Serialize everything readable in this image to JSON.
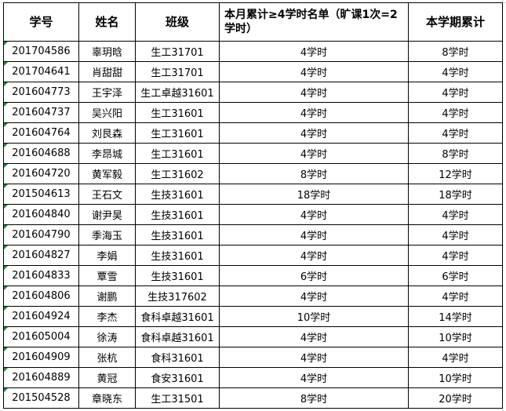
{
  "headers": [
    "学号",
    "姓名",
    "班级",
    "本月累计≥4学时名单（旷课1次=2学时）",
    "本学期累计"
  ],
  "rows": [
    [
      "201704586",
      "辜玥晗",
      "生工31701",
      "4学时",
      "8学时"
    ],
    [
      "201704641",
      "肖甜甜",
      "生工31701",
      "4学时",
      "4学时"
    ],
    [
      "201604773",
      "王宇泽",
      "生工卓越31601",
      "4学时",
      "4学时"
    ],
    [
      "201604737",
      "吴兴阳",
      "生工31601",
      "4学时",
      "4学时"
    ],
    [
      "201604764",
      "刘艮森",
      "生工31601",
      "4学时",
      "4学时"
    ],
    [
      "201604688",
      "李昂城",
      "生工31601",
      "4学时",
      "8学时"
    ],
    [
      "201604720",
      "黄军毅",
      "生工31602",
      "8学时",
      "12学时"
    ],
    [
      "201504613",
      "王石文",
      "生技31601",
      "18学时",
      "18学时"
    ],
    [
      "201604840",
      "谢尹昊",
      "生技31601",
      "4学时",
      "4学时"
    ],
    [
      "201604790",
      "季海玉",
      "生技31601",
      "4学时",
      "4学时"
    ],
    [
      "201604827",
      "李娟",
      "生技31601",
      "4学时",
      "4学时"
    ],
    [
      "201604833",
      "覃雪",
      "生技31601",
      "6学时",
      "6学时"
    ],
    [
      "201604806",
      "谢鹏",
      "生技317602",
      "4学时",
      "4学时"
    ],
    [
      "201604924",
      "李杰",
      "食科卓越31601",
      "10学时",
      "14学时"
    ],
    [
      "201605004",
      "徐涛",
      "食科卓越31601",
      "4学时",
      "10学时"
    ],
    [
      "201604909",
      "张杭",
      "食科31601",
      "4学时",
      "4学时"
    ],
    [
      "201604889",
      "黄冠",
      "食安31601",
      "4学时",
      "10学时"
    ],
    [
      "201504528",
      "章晓东",
      "生工31501",
      "8学时",
      "20学时"
    ]
  ]
}
